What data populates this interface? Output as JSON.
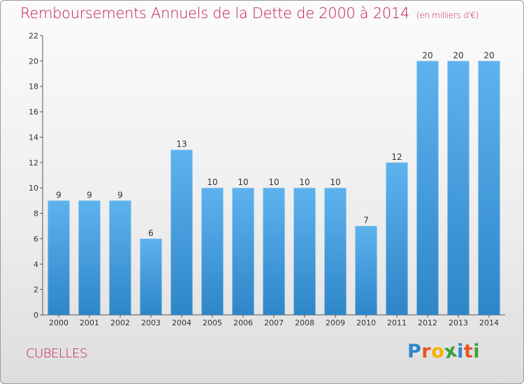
{
  "chart_data": {
    "type": "bar",
    "title": "Remboursements Annuels de la Dette de 2000 à 2014",
    "unit_note": "(en milliers d'€)",
    "categories": [
      "2000",
      "2001",
      "2002",
      "2003",
      "2004",
      "2005",
      "2006",
      "2007",
      "2008",
      "2009",
      "2010",
      "2011",
      "2012",
      "2013",
      "2014"
    ],
    "values": [
      9,
      9,
      9,
      6,
      13,
      10,
      10,
      10,
      10,
      10,
      7,
      12,
      20,
      20,
      20
    ],
    "ylim": [
      0,
      22
    ],
    "yticks": [
      0,
      2,
      4,
      6,
      8,
      10,
      12,
      14,
      16,
      18,
      20,
      22
    ],
    "grid": false,
    "bar_color": "#2e86c9",
    "bar_color_light": "#5eb3ee"
  },
  "footer": {
    "commune": "CUBELLES",
    "logo_letters": [
      "P",
      "r",
      "o",
      "x",
      "i",
      "t",
      "i"
    ],
    "logo_colors": [
      "#2e86c9",
      "#e8541e",
      "#f4b400",
      "#3aa13a",
      "#2e86c9",
      "#e8541e",
      "#3aa13a"
    ]
  }
}
